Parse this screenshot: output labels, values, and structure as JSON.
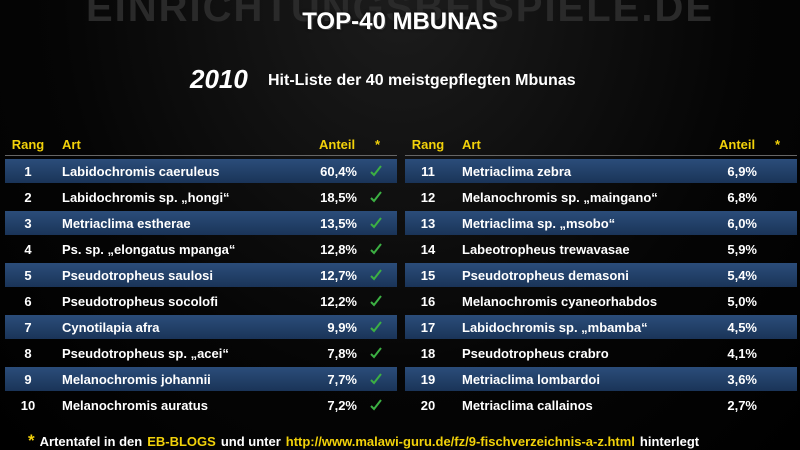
{
  "watermark": "EINRICHTUNGSBEISPIELE.DE",
  "title": "TOP-40 MBUNAS",
  "year": "2010",
  "subtitle": "Hit-Liste der 40 meistgepflegten Mbunas",
  "tables": [
    {
      "header": [
        "Rang",
        "Art",
        "Anteil",
        "*"
      ],
      "rows": [
        [
          "1",
          "Labidochromis caeruleus",
          "60,4%"
        ],
        [
          "2",
          "Labidochromis sp. „hongi“",
          "18,5%"
        ],
        [
          "3",
          "Metriaclima estherae",
          "13,5%"
        ],
        [
          "4",
          "Ps. sp. „elongatus mpanga“",
          "12,8%"
        ],
        [
          "5",
          "Pseudotropheus saulosi",
          "12,7%"
        ],
        [
          "6",
          "Pseudotropheus socolofi",
          "12,2%"
        ],
        [
          "7",
          "Cynotilapia afra",
          "9,9%"
        ],
        [
          "8",
          "Pseudotropheus sp. „acei“",
          "7,8%"
        ],
        [
          "9",
          "Melanochromis johannii",
          "7,7%"
        ],
        [
          "10",
          "Melanochromis auratus",
          "7,2%"
        ]
      ]
    },
    {
      "header": [
        "Rang",
        "Art",
        "Anteil",
        "*"
      ],
      "rows": [
        [
          "11",
          "Metriaclima zebra",
          "6,9%"
        ],
        [
          "12",
          "Melanochromis sp. „maingano“",
          "6,8%"
        ],
        [
          "13",
          "Metriaclima sp. „msobo“",
          "6,0%"
        ],
        [
          "14",
          "Labeotropheus trewavasae",
          "5,9%"
        ],
        [
          "15",
          "Pseudotropheus demasoni",
          "5,4%"
        ],
        [
          "16",
          "Melanochromis cyaneorhabdos",
          "5,0%"
        ],
        [
          "17",
          "Labidochromis sp. „mbamba“",
          "4,5%"
        ],
        [
          "18",
          "Pseudotropheus crabro",
          "4,1%"
        ],
        [
          "19",
          "Metriaclima lombardoi",
          "3,6%"
        ],
        [
          "20",
          "Metriaclima callainos",
          "2,7%"
        ]
      ]
    }
  ],
  "footer": [
    "*",
    "Artentafel in den",
    "EB-BLOGS",
    "und unter",
    "http://www.malawi-guru.de/fz/9-fischverzeichnis-a-z.html",
    "hinterlegt"
  ]
}
